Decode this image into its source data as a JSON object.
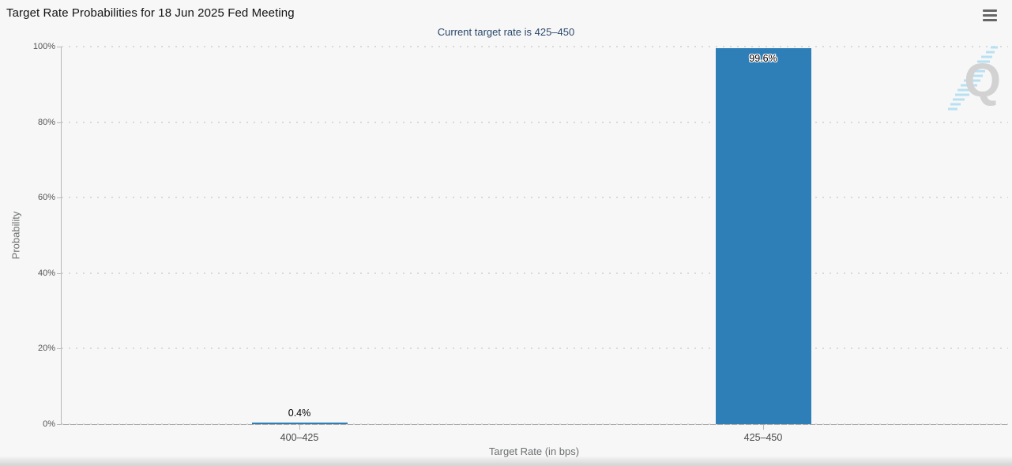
{
  "header": {
    "title": "Target Rate Probabilities for 18 Jun 2025 Fed Meeting",
    "menu_icon": "hamburger-icon"
  },
  "watermark": {
    "letter": "Q"
  },
  "chart_data": {
    "type": "bar",
    "title": "Target Rate Probabilities for 18 Jun 2025 Fed Meeting",
    "subtitle": "Current target rate is 425–450",
    "categories": [
      "400–425",
      "425–450"
    ],
    "values": [
      0.4,
      99.6
    ],
    "value_labels": [
      "0.4%",
      "99.6%"
    ],
    "xlabel": "Target Rate (in bps)",
    "ylabel": "Probability",
    "ylim": [
      0,
      100
    ],
    "yticks": [
      0,
      20,
      40,
      60,
      80,
      100
    ],
    "ytick_labels": [
      "0%",
      "20%",
      "40%",
      "60%",
      "80%",
      "100%"
    ],
    "grid": "dotted-horizontal",
    "legend": "none",
    "bar_color": "#2e7fb8",
    "subtitle_color": "#2a486b"
  }
}
